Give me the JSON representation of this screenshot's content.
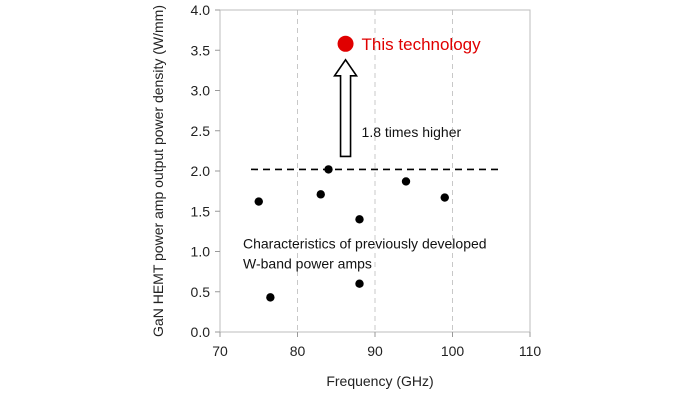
{
  "chart_data": {
    "type": "scatter",
    "xlabel": "Frequency (GHz)",
    "ylabel": "GaN HEMT power amp output power density (W/mm)",
    "xlim": [
      70,
      110
    ],
    "ylim": [
      0,
      4.0
    ],
    "x_ticks": [
      "70",
      "80",
      "90",
      "100",
      "110"
    ],
    "y_ticks": [
      "0.0",
      "0.5",
      "1.0",
      "1.5",
      "2.0",
      "2.5",
      "3.0",
      "3.5",
      "4.0"
    ],
    "grid": "vertical dashed",
    "series": [
      {
        "name": "Characteristics of previously developed W-band power amps",
        "color": "#000000",
        "points": [
          {
            "x": 75,
            "y": 1.62
          },
          {
            "x": 76.5,
            "y": 0.43
          },
          {
            "x": 83,
            "y": 1.71
          },
          {
            "x": 84,
            "y": 2.02
          },
          {
            "x": 88,
            "y": 1.4
          },
          {
            "x": 88,
            "y": 0.6
          },
          {
            "x": 94,
            "y": 1.87
          },
          {
            "x": 99,
            "y": 1.67
          }
        ]
      },
      {
        "name": "This technology",
        "color": "#e00000",
        "points": [
          {
            "x": 86.2,
            "y": 3.58
          }
        ]
      }
    ],
    "reference_line": {
      "y": 2.02,
      "x_range": [
        74,
        106
      ],
      "style": "dashed"
    },
    "annotations": {
      "highlight_label": "This technology",
      "arrow_text": "1.8 times higher",
      "group_label_line1": "Characteristics of previously developed",
      "group_label_line2": "W-band power amps"
    },
    "colors": {
      "accent": "#e00000",
      "points": "#000000",
      "grid": "#c8c8c8"
    }
  }
}
